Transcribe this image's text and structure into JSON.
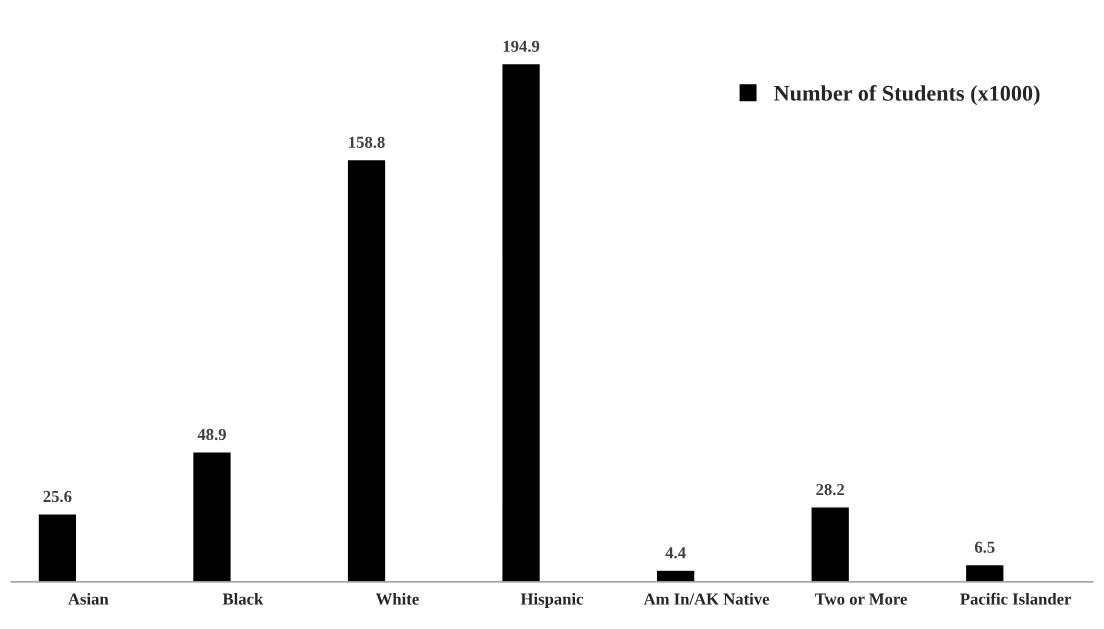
{
  "chart_data": {
    "type": "bar",
    "categories": [
      "Asian",
      "Black",
      "White",
      "Hispanic",
      "Am In/AK Native",
      "Two or More",
      "Pacific Islander"
    ],
    "series": [
      {
        "name": "Number of Students (x1000)",
        "color": "#000000",
        "values": [
          25.6,
          48.9,
          158.8,
          194.9,
          4.4,
          28.2,
          6.5
        ]
      }
    ],
    "data_labels": true,
    "legend": "top right",
    "grid": false,
    "tick_labels": "x"
  }
}
